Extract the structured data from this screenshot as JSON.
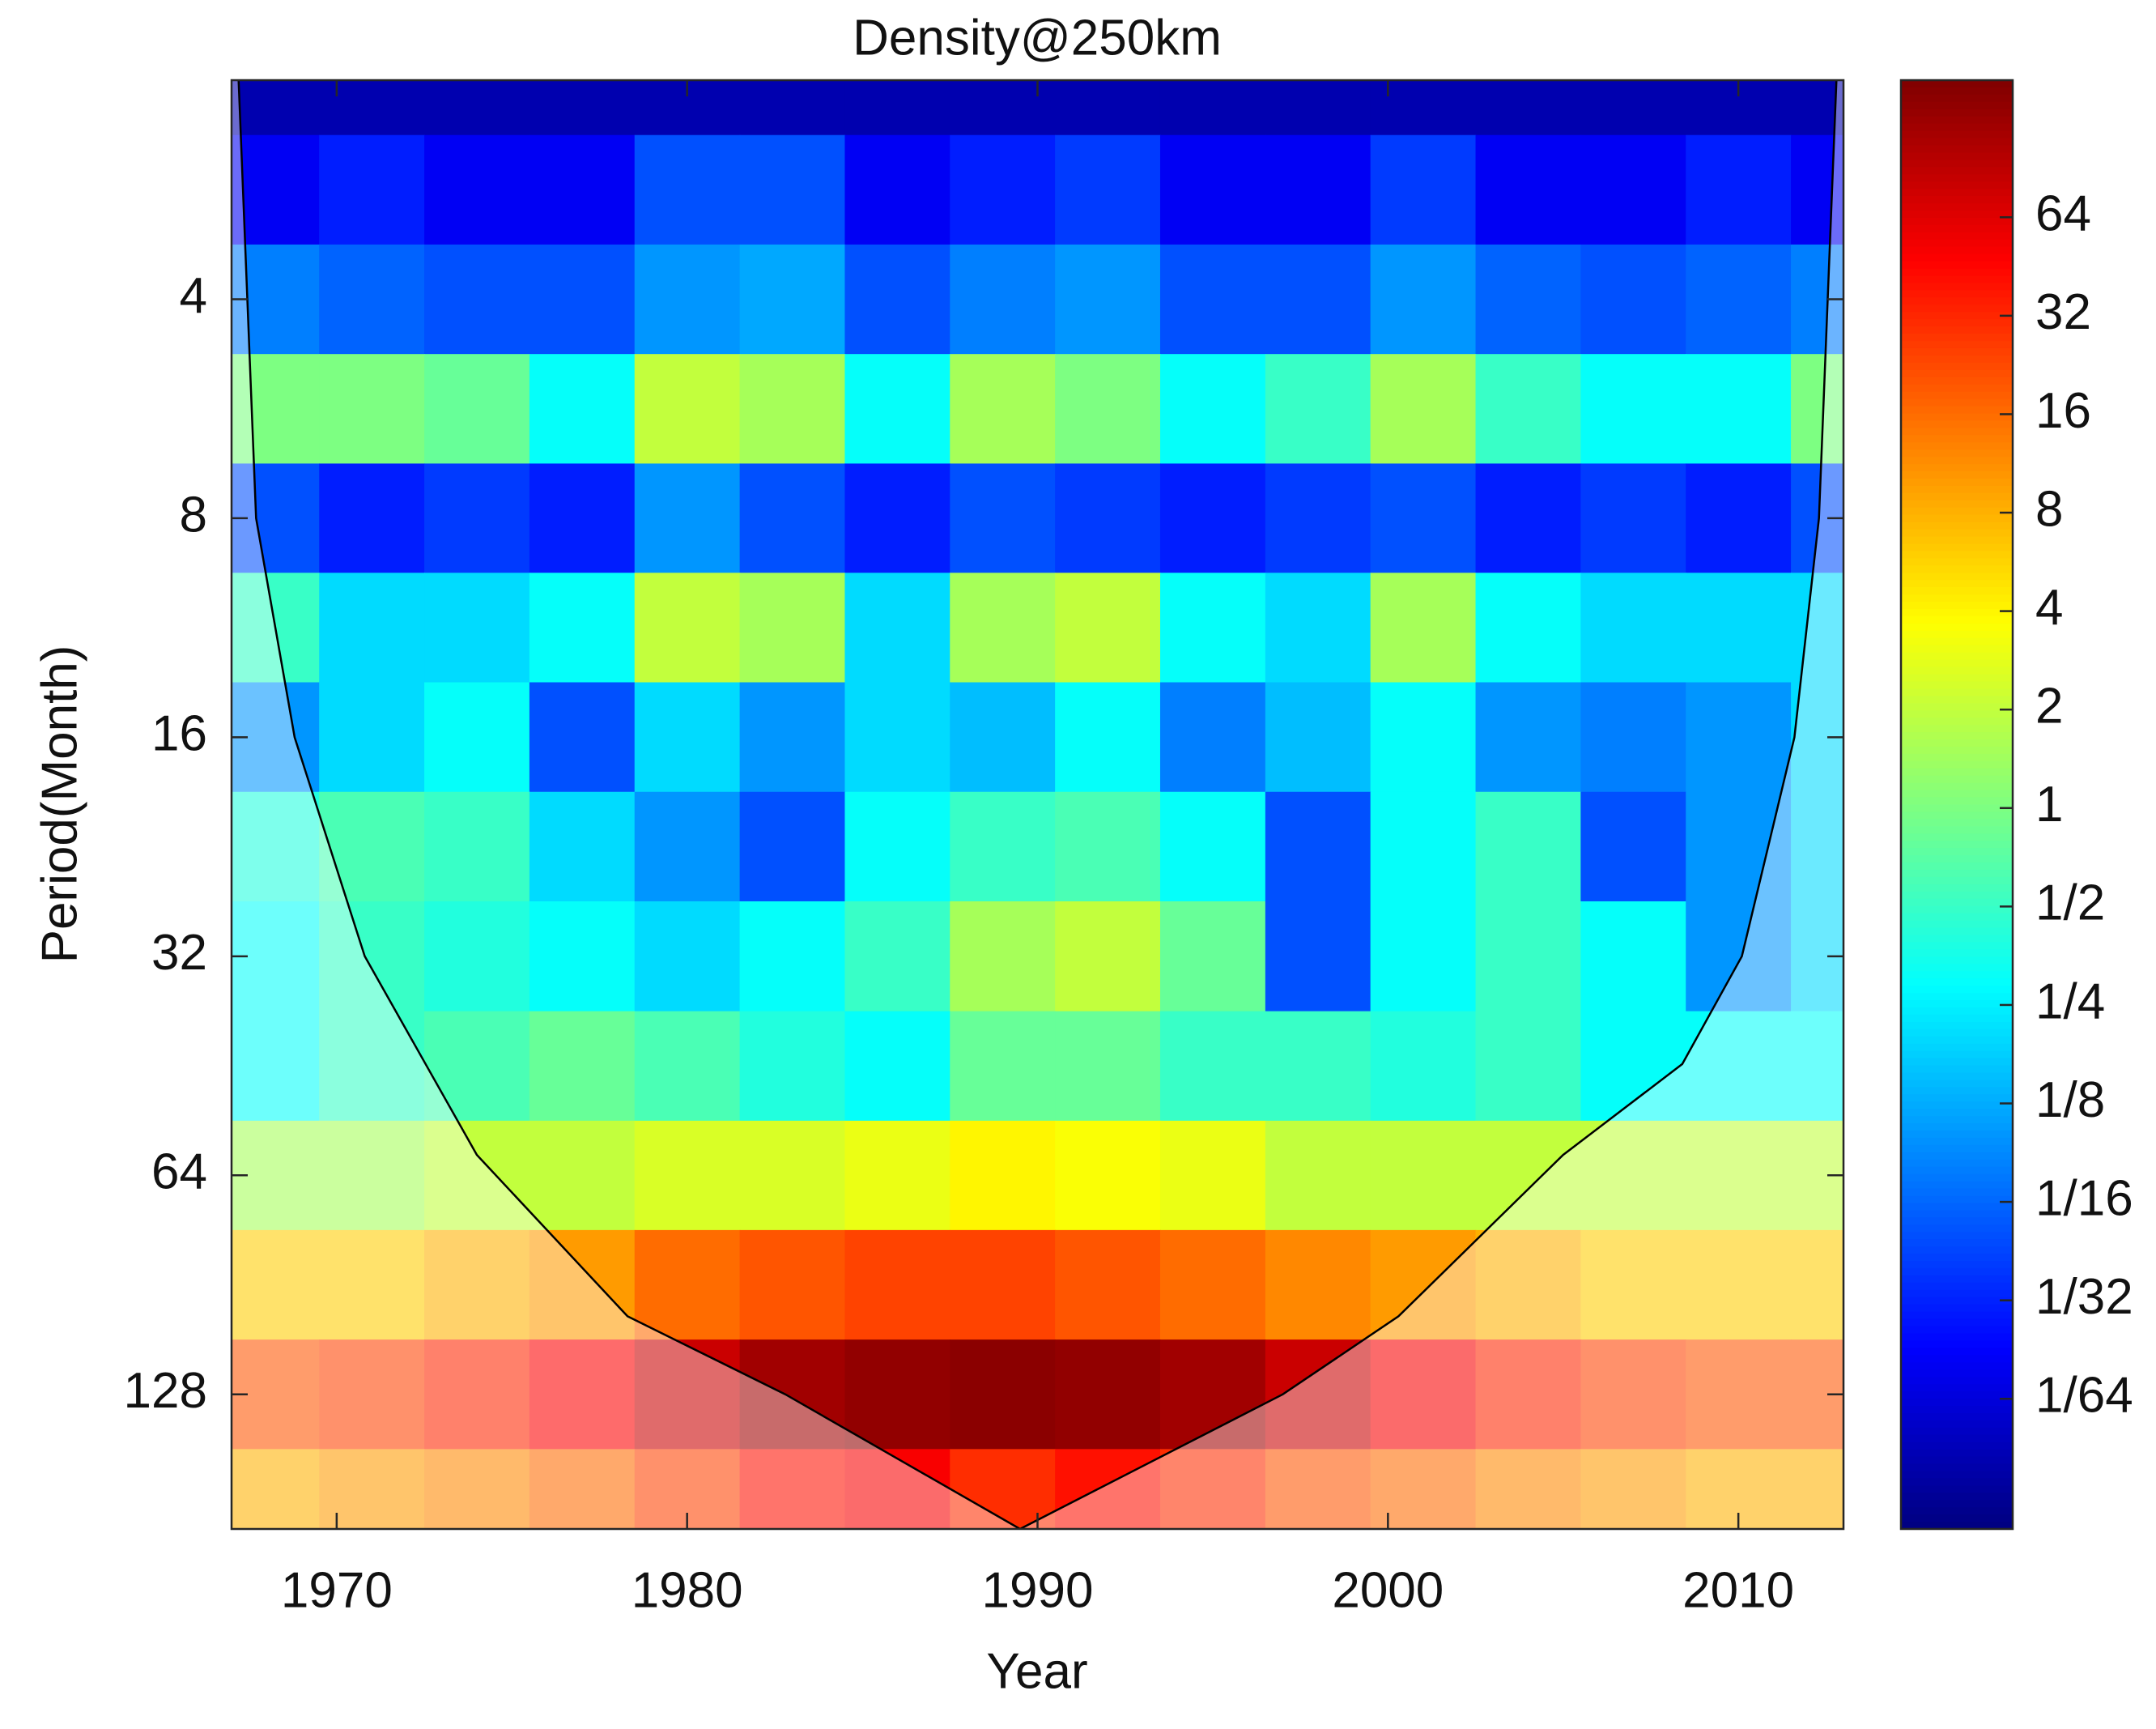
{
  "chart_data": {
    "type": "heatmap",
    "title": "Density@250km",
    "xlabel": "Year",
    "ylabel": "Period(Month)",
    "colormap": "jet",
    "log_y": true,
    "y_reversed": true,
    "xlim": [
      1967,
      2013
    ],
    "xticks": [
      1970,
      1980,
      1990,
      2000,
      2010
    ],
    "ylim": [
      2,
      196
    ],
    "yticks": [
      4,
      8,
      16,
      32,
      64,
      128
    ],
    "clim": [
      0.00625,
      168
    ],
    "cticks": [
      {
        "value": 64,
        "label": "64"
      },
      {
        "value": 32,
        "label": "32"
      },
      {
        "value": 16,
        "label": "16"
      },
      {
        "value": 8,
        "label": "8"
      },
      {
        "value": 4,
        "label": "4"
      },
      {
        "value": 2,
        "label": "2"
      },
      {
        "value": 1,
        "label": "1"
      },
      {
        "value": 0.5,
        "label": "1/2"
      },
      {
        "value": 0.25,
        "label": "1/4"
      },
      {
        "value": 0.125,
        "label": "1/8"
      },
      {
        "value": 0.0625,
        "label": "1/16"
      },
      {
        "value": 0.03125,
        "label": "1/32"
      },
      {
        "value": 0.015625,
        "label": "1/64"
      }
    ],
    "x": [
      1968,
      1971,
      1974,
      1977,
      1980,
      1983,
      1986,
      1989,
      1992,
      1995,
      1998,
      2001,
      2004,
      2007,
      2010,
      2013
    ],
    "y": [
      2,
      2.83,
      4,
      5.66,
      8,
      11.3,
      16,
      22.6,
      32,
      45.3,
      64,
      90.5,
      128,
      181
    ],
    "z": [
      [
        0.01,
        0.01,
        0.01,
        0.01,
        0.01,
        0.01,
        0.01,
        0.01,
        0.01,
        0.01,
        0.01,
        0.01,
        0.01,
        0.01,
        0.01,
        0.01
      ],
      [
        0.02,
        0.03,
        0.02,
        0.02,
        0.05,
        0.05,
        0.02,
        0.03,
        0.04,
        0.02,
        0.02,
        0.04,
        0.02,
        0.02,
        0.03,
        0.02
      ],
      [
        0.08,
        0.06,
        0.05,
        0.05,
        0.1,
        0.12,
        0.05,
        0.08,
        0.1,
        0.05,
        0.05,
        0.1,
        0.06,
        0.05,
        0.06,
        0.08
      ],
      [
        1,
        1,
        0.8,
        0.3,
        2,
        1.5,
        0.3,
        1.5,
        1,
        0.3,
        0.5,
        1.5,
        0.5,
        0.3,
        0.3,
        1
      ],
      [
        0.05,
        0.03,
        0.04,
        0.03,
        0.1,
        0.05,
        0.03,
        0.05,
        0.04,
        0.03,
        0.04,
        0.05,
        0.03,
        0.04,
        0.03,
        0.05
      ],
      [
        0.5,
        0.2,
        0.2,
        0.3,
        2,
        1.5,
        0.2,
        1.5,
        2,
        0.3,
        0.2,
        1.5,
        0.3,
        0.2,
        0.2,
        0.2
      ],
      [
        0.1,
        0.2,
        0.3,
        0.05,
        0.2,
        0.1,
        0.2,
        0.15,
        0.3,
        0.08,
        0.15,
        0.3,
        0.1,
        0.08,
        0.1,
        0.2
      ],
      [
        0.4,
        0.6,
        0.5,
        0.2,
        0.1,
        0.05,
        0.3,
        0.5,
        0.6,
        0.3,
        0.05,
        0.3,
        0.5,
        0.05,
        0.1,
        0.2
      ],
      [
        0.3,
        0.5,
        0.4,
        0.3,
        0.2,
        0.3,
        0.5,
        1.5,
        2,
        0.8,
        0.05,
        0.3,
        0.5,
        0.3,
        0.1,
        0.2
      ],
      [
        0.3,
        0.5,
        0.6,
        0.8,
        0.6,
        0.4,
        0.3,
        0.8,
        0.8,
        0.5,
        0.5,
        0.4,
        0.5,
        0.3,
        0.3,
        0.3
      ],
      [
        1.5,
        1.5,
        2,
        2,
        2.5,
        2.5,
        3,
        4,
        3.5,
        3,
        2,
        2,
        2,
        2,
        2,
        2
      ],
      [
        6,
        6,
        8,
        10,
        16,
        20,
        24,
        24,
        20,
        16,
        12,
        10,
        8,
        6,
        6,
        6
      ],
      [
        20,
        24,
        32,
        48,
        80,
        120,
        140,
        150,
        140,
        120,
        80,
        50,
        32,
        24,
        20,
        20
      ],
      [
        8,
        10,
        12,
        16,
        24,
        40,
        50,
        30,
        40,
        30,
        20,
        16,
        12,
        10,
        8,
        8
      ]
    ],
    "coi": {
      "color": "#000000",
      "x": [
        1967.2,
        1967.7,
        1968.8,
        1970.8,
        1974,
        1978.3,
        1982.8,
        1989.5,
        1997,
        2000.3,
        2005,
        2008.4,
        2010.1,
        2011.6,
        2012.3,
        2012.8
      ],
      "y": [
        2,
        8,
        16,
        32,
        60,
        100,
        128,
        196,
        128,
        100,
        60,
        45,
        32,
        16,
        8,
        2
      ]
    }
  }
}
